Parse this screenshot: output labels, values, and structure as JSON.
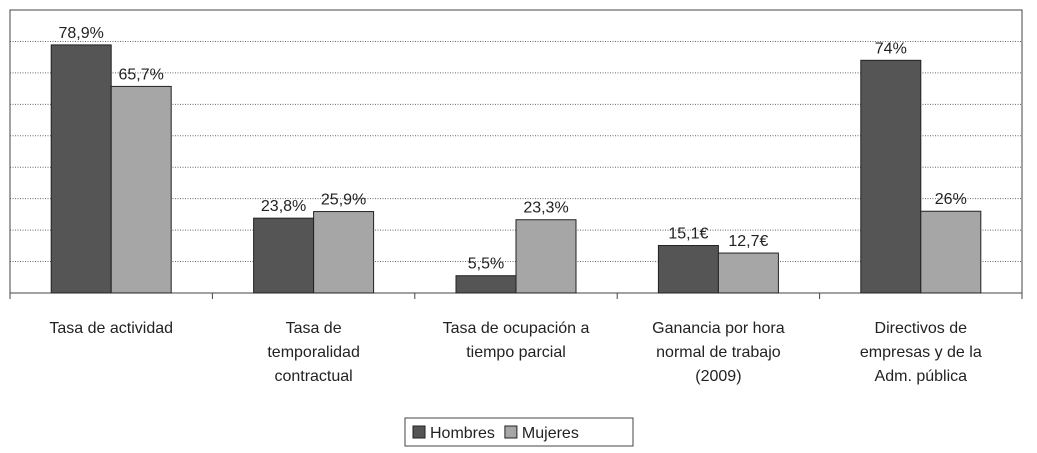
{
  "chart_data": {
    "type": "bar",
    "categories": [
      [
        "Tasa de actividad"
      ],
      [
        "Tasa de",
        "temporalidad",
        "contractual"
      ],
      [
        "Tasa de ocupación a",
        "tiempo parcial"
      ],
      [
        "Ganancia por hora",
        "normal de trabajo",
        "(2009)"
      ],
      [
        "Directivos de",
        "empresas y de la",
        "Adm. pública"
      ]
    ],
    "series": [
      {
        "name": "Hombres",
        "color": "#555555",
        "values": [
          78.9,
          23.8,
          5.5,
          15.1,
          74
        ],
        "value_labels": [
          "78,9%",
          "23,8%",
          "5,5%",
          "15,1€",
          "74%"
        ]
      },
      {
        "name": "Mujeres",
        "color": "#a6a6a6",
        "values": [
          65.7,
          25.9,
          23.3,
          12.7,
          26
        ],
        "value_labels": [
          "65,7%",
          "25,9%",
          "23,3%",
          "12,7€",
          "26%"
        ]
      }
    ],
    "ylim": [
      0,
      90
    ],
    "yticks": [
      10,
      20,
      30,
      40,
      50,
      60,
      70,
      80
    ],
    "grid": true,
    "legend": "bottom"
  }
}
